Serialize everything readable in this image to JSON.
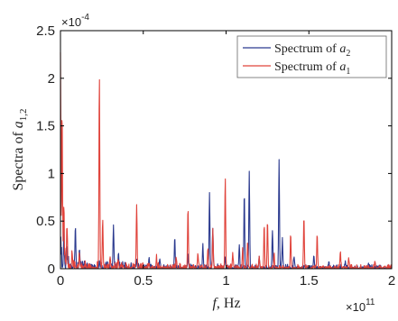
{
  "chart_data": {
    "type": "line",
    "xlabel_main": "f",
    "xlabel_unit": ", Hz",
    "ylabel_main": "Spectra of ",
    "ylabel_var": "a",
    "ylabel_sub": "1,2",
    "x_multiplier_base": "×10",
    "x_multiplier_exp": "11",
    "y_multiplier_base": "×10",
    "y_multiplier_exp": "-4",
    "xlim": [
      0,
      2
    ],
    "ylim": [
      0,
      2.5
    ],
    "x_ticks": [
      "0",
      "0.5",
      "1",
      "1.5",
      "2"
    ],
    "y_ticks": [
      "0",
      "0.5",
      "1",
      "1.5",
      "2",
      "2.5"
    ],
    "x_tick_values": [
      0,
      0.5,
      1,
      1.5,
      2
    ],
    "y_tick_values": [
      0,
      0.5,
      1,
      1.5,
      2,
      2.5
    ],
    "grid": false,
    "legend_position": "top-right",
    "legend": [
      {
        "prefix": "Spectrum of ",
        "var": "a",
        "sub": "2"
      },
      {
        "prefix": "Spectrum of ",
        "var": "a",
        "sub": "1"
      }
    ],
    "series": [
      {
        "color": "#2b3a8f",
        "peaks": [
          [
            0.0,
            0.28
          ],
          [
            0.02,
            0.25
          ],
          [
            0.04,
            0.1
          ],
          [
            0.09,
            0.44
          ],
          [
            0.115,
            0.2
          ],
          [
            0.235,
            0.08
          ],
          [
            0.32,
            0.46
          ],
          [
            0.35,
            0.15
          ],
          [
            0.46,
            0.1
          ],
          [
            0.535,
            0.12
          ],
          [
            0.6,
            0.1
          ],
          [
            0.69,
            0.32
          ],
          [
            0.77,
            0.12
          ],
          [
            0.86,
            0.22
          ],
          [
            0.9,
            0.8
          ],
          [
            0.92,
            0.42
          ],
          [
            0.995,
            0.12
          ],
          [
            1.08,
            0.22
          ],
          [
            1.11,
            0.8
          ],
          [
            1.14,
            1.02
          ],
          [
            1.2,
            0.12
          ],
          [
            1.28,
            0.4
          ],
          [
            1.32,
            1.13
          ],
          [
            1.34,
            0.3
          ],
          [
            1.41,
            0.12
          ],
          [
            1.53,
            0.14
          ],
          [
            1.62,
            0.05
          ],
          [
            1.72,
            0.06
          ],
          [
            1.86,
            0.04
          ]
        ]
      },
      {
        "color": "#e0433b",
        "peaks": [
          [
            0.0,
            2.15
          ],
          [
            0.01,
            1.6
          ],
          [
            0.02,
            0.63
          ],
          [
            0.04,
            0.4
          ],
          [
            0.07,
            0.15
          ],
          [
            0.115,
            0.12
          ],
          [
            0.235,
            2.02
          ],
          [
            0.255,
            0.5
          ],
          [
            0.3,
            0.12
          ],
          [
            0.35,
            0.08
          ],
          [
            0.46,
            0.65
          ],
          [
            0.58,
            0.1
          ],
          [
            0.7,
            0.1
          ],
          [
            0.77,
            0.63
          ],
          [
            0.83,
            0.15
          ],
          [
            0.89,
            0.2
          ],
          [
            0.92,
            0.38
          ],
          [
            0.995,
            0.96
          ],
          [
            1.04,
            0.15
          ],
          [
            1.1,
            0.2
          ],
          [
            1.13,
            0.28
          ],
          [
            1.2,
            0.12
          ],
          [
            1.23,
            0.45
          ],
          [
            1.25,
            0.5
          ],
          [
            1.29,
            0.15
          ],
          [
            1.39,
            0.35
          ],
          [
            1.47,
            0.55
          ],
          [
            1.55,
            0.35
          ],
          [
            1.69,
            0.17
          ],
          [
            1.74,
            0.1
          ],
          [
            1.9,
            0.07
          ]
        ]
      }
    ]
  }
}
